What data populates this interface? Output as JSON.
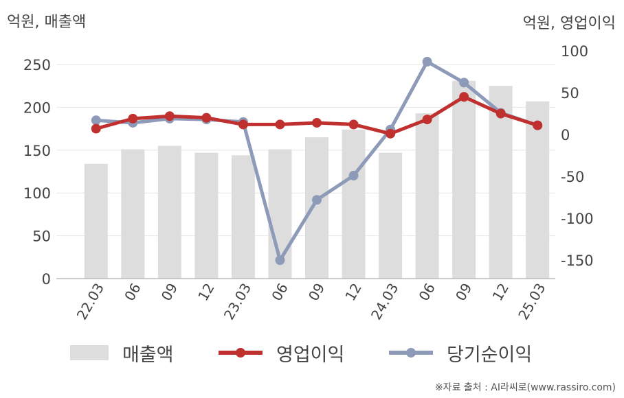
{
  "chart_data": {
    "type": "bar+line",
    "y_left_label": "억원, 매출액",
    "y_right_label": "억원, 영업이익",
    "categories": [
      "22.03",
      "06",
      "09",
      "12",
      "23.03",
      "06",
      "09",
      "12",
      "24.03",
      "06",
      "09",
      "12",
      "25.03"
    ],
    "y_left": {
      "ticks": [
        0,
        50,
        100,
        150,
        200,
        250
      ],
      "range": [
        0,
        250
      ]
    },
    "y_right": {
      "ticks": [
        -150,
        -100,
        -50,
        0,
        50,
        100
      ],
      "range": [
        -172,
        100
      ]
    },
    "series": [
      {
        "name": "매출액",
        "type": "bar",
        "axis": "left",
        "color": "#dddddd",
        "values": [
          134,
          151,
          155,
          147,
          144,
          151,
          165,
          174,
          147,
          193,
          231,
          225,
          207
        ]
      },
      {
        "name": "영업이익",
        "type": "line",
        "axis": "right",
        "color": "#c0302f",
        "values": [
          7,
          19,
          22,
          20,
          12,
          12,
          14,
          12,
          1,
          18,
          45,
          25,
          11
        ]
      },
      {
        "name": "당기순이익",
        "type": "line",
        "axis": "right",
        "color": "#8e9bb8",
        "values": [
          17,
          14,
          19,
          18,
          15,
          -150,
          -78,
          -49,
          6,
          87,
          62,
          26,
          11
        ]
      }
    ],
    "grid": true,
    "legend_position": "bottom"
  },
  "legend": [
    {
      "label": "매출액"
    },
    {
      "label": "영업이익"
    },
    {
      "label": "당기순이익"
    }
  ],
  "source": "※자료 출처 : AI라씨로(www.rassiro.com)"
}
